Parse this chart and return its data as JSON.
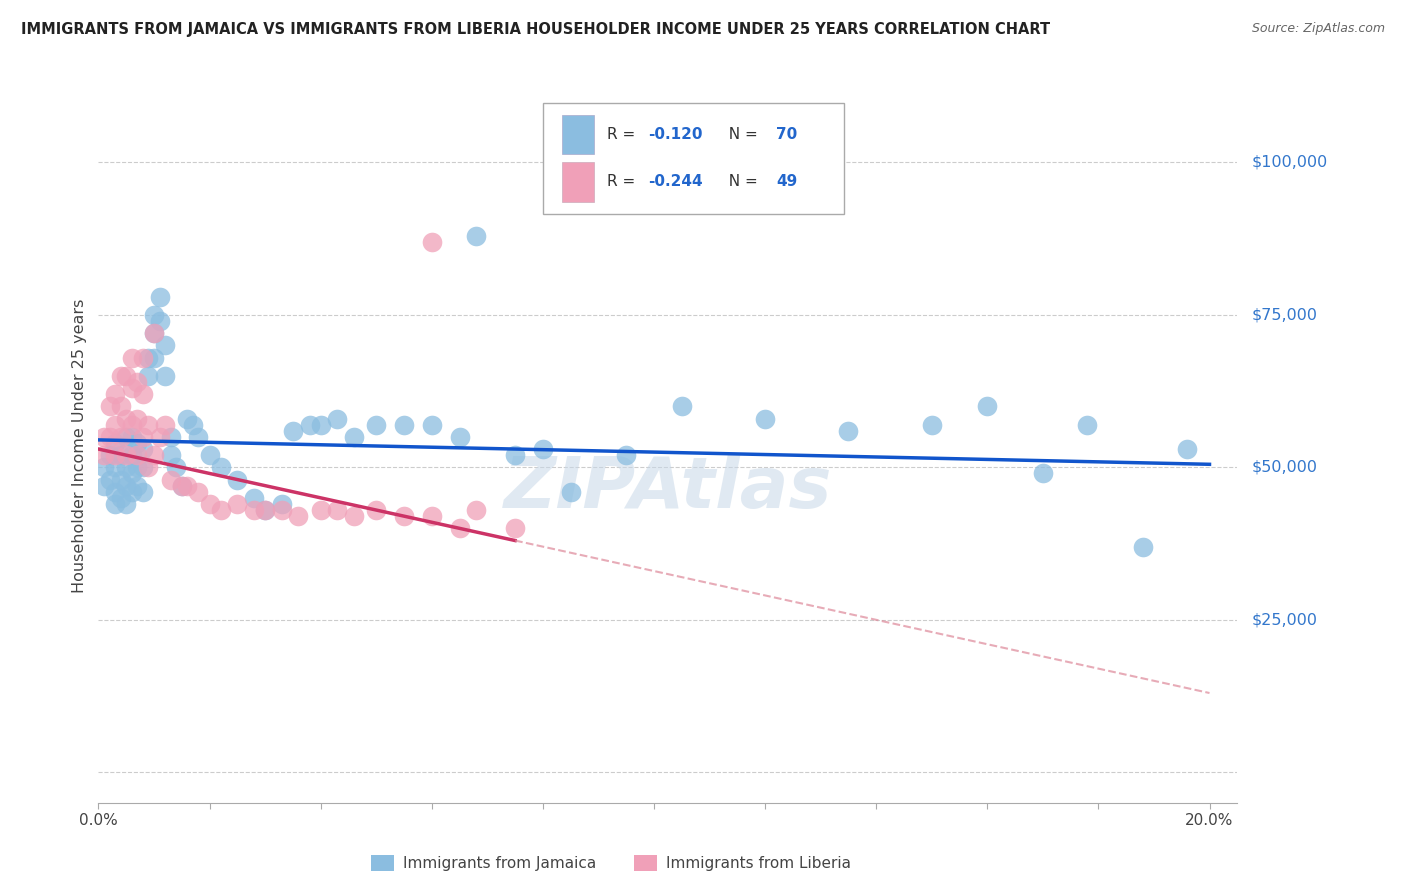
{
  "title": "IMMIGRANTS FROM JAMAICA VS IMMIGRANTS FROM LIBERIA HOUSEHOLDER INCOME UNDER 25 YEARS CORRELATION CHART",
  "source": "Source: ZipAtlas.com",
  "ylabel": "Householder Income Under 25 years",
  "xlim": [
    0.0,
    0.205
  ],
  "ylim": [
    -5000,
    112000
  ],
  "yticks": [
    0,
    25000,
    50000,
    75000,
    100000
  ],
  "ytick_labels": [
    "",
    "$25,000",
    "$50,000",
    "$75,000",
    "$100,000"
  ],
  "jamaica_color": "#8bbde0",
  "liberia_color": "#f0a0b8",
  "jamaica_line_color": "#1155cc",
  "liberia_line_color": "#cc3366",
  "liberia_line_dash_color": "#dd8899",
  "watermark": "ZIPAtlas",
  "jamaica_R": "-0.120",
  "jamaica_N": "70",
  "liberia_R": "-0.244",
  "liberia_N": "49",
  "jamaica_x": [
    0.001,
    0.001,
    0.002,
    0.002,
    0.003,
    0.003,
    0.003,
    0.003,
    0.004,
    0.004,
    0.004,
    0.005,
    0.005,
    0.005,
    0.005,
    0.006,
    0.006,
    0.006,
    0.006,
    0.007,
    0.007,
    0.007,
    0.008,
    0.008,
    0.008,
    0.009,
    0.009,
    0.01,
    0.01,
    0.01,
    0.011,
    0.011,
    0.012,
    0.012,
    0.013,
    0.013,
    0.014,
    0.015,
    0.016,
    0.017,
    0.018,
    0.02,
    0.022,
    0.025,
    0.028,
    0.03,
    0.033,
    0.035,
    0.038,
    0.04,
    0.043,
    0.046,
    0.05,
    0.055,
    0.06,
    0.065,
    0.068,
    0.075,
    0.08,
    0.085,
    0.095,
    0.105,
    0.12,
    0.135,
    0.15,
    0.16,
    0.17,
    0.178,
    0.188,
    0.196
  ],
  "jamaica_y": [
    50000,
    47000,
    52000,
    48000,
    54000,
    50000,
    46000,
    44000,
    52000,
    48000,
    45000,
    55000,
    50000,
    47000,
    44000,
    55000,
    52000,
    49000,
    46000,
    54000,
    50000,
    47000,
    53000,
    50000,
    46000,
    68000,
    65000,
    75000,
    72000,
    68000,
    78000,
    74000,
    70000,
    65000,
    55000,
    52000,
    50000,
    47000,
    58000,
    57000,
    55000,
    52000,
    50000,
    48000,
    45000,
    43000,
    44000,
    56000,
    57000,
    57000,
    58000,
    55000,
    57000,
    57000,
    57000,
    55000,
    88000,
    52000,
    53000,
    46000,
    52000,
    60000,
    58000,
    56000,
    57000,
    60000,
    49000,
    57000,
    37000,
    53000
  ],
  "liberia_x": [
    0.001,
    0.001,
    0.002,
    0.002,
    0.003,
    0.003,
    0.003,
    0.004,
    0.004,
    0.004,
    0.005,
    0.005,
    0.005,
    0.006,
    0.006,
    0.006,
    0.007,
    0.007,
    0.007,
    0.008,
    0.008,
    0.008,
    0.009,
    0.009,
    0.01,
    0.01,
    0.011,
    0.012,
    0.013,
    0.015,
    0.016,
    0.018,
    0.02,
    0.022,
    0.025,
    0.028,
    0.03,
    0.033,
    0.036,
    0.04,
    0.043,
    0.046,
    0.05,
    0.055,
    0.06,
    0.065,
    0.068,
    0.075,
    0.06
  ],
  "liberia_y": [
    55000,
    52000,
    60000,
    55000,
    62000,
    57000,
    52000,
    65000,
    60000,
    55000,
    65000,
    58000,
    52000,
    68000,
    63000,
    57000,
    64000,
    58000,
    52000,
    68000,
    62000,
    55000,
    57000,
    50000,
    72000,
    52000,
    55000,
    57000,
    48000,
    47000,
    47000,
    46000,
    44000,
    43000,
    44000,
    43000,
    43000,
    43000,
    42000,
    43000,
    43000,
    42000,
    43000,
    42000,
    42000,
    40000,
    43000,
    40000,
    87000
  ]
}
